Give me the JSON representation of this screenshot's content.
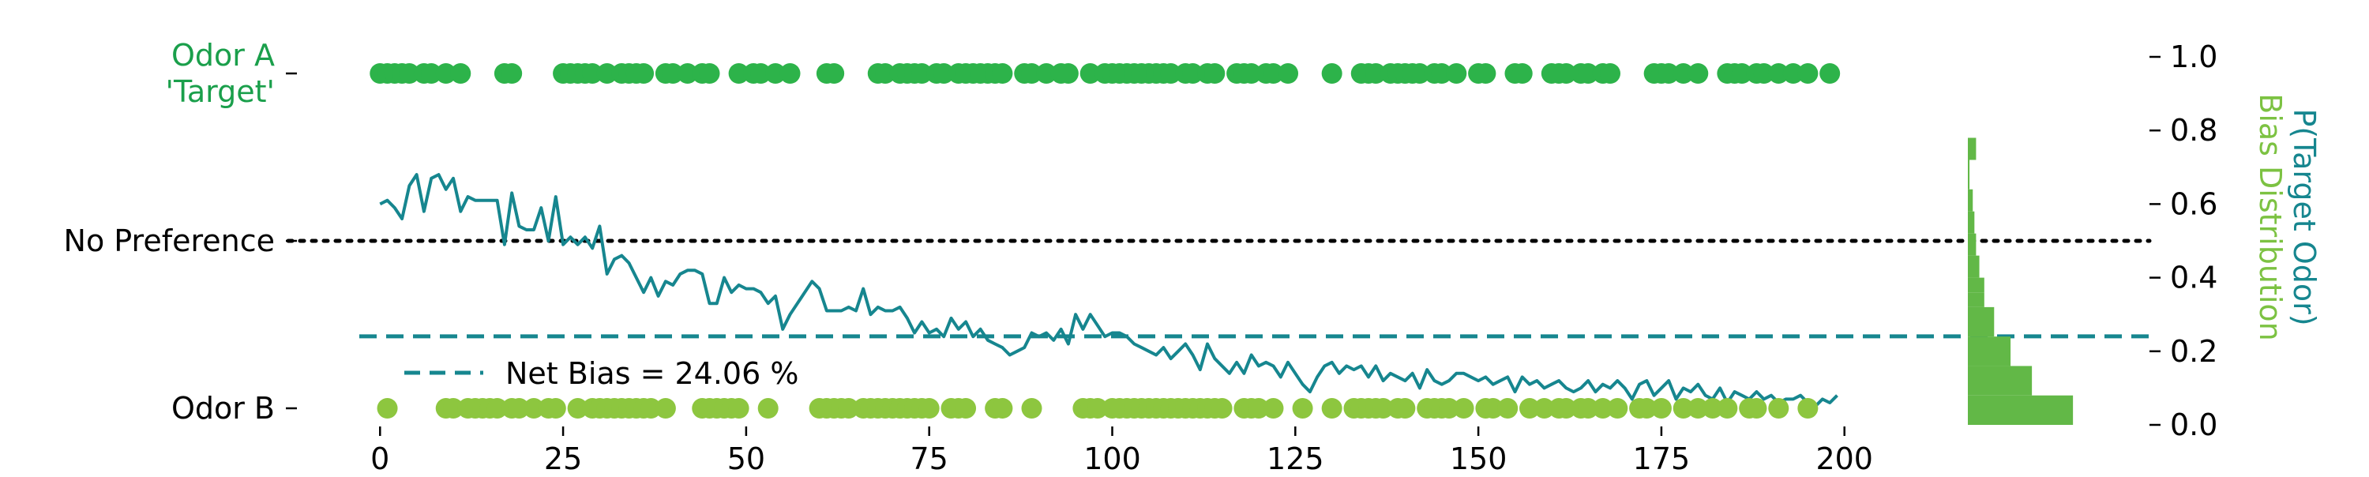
{
  "chart_data": {
    "type": "scatter",
    "xlim": [
      -1,
      201
    ],
    "ylim": [
      0.0,
      1.0
    ],
    "x_ticks": [
      0,
      25,
      50,
      75,
      100,
      125,
      150,
      175,
      200
    ],
    "y_ticks": [
      "0.0",
      "0.2",
      "0.4",
      "0.6",
      "0.8",
      "1.0"
    ],
    "y_tick_values": [
      0.0,
      0.2,
      0.4,
      0.6,
      0.8,
      1.0
    ],
    "left_labels": [
      {
        "value": 0.95,
        "lines": [
          "Odor A",
          "'Target'"
        ],
        "color": "#1a9f4b"
      },
      {
        "value": 0.5,
        "lines": [
          "No Preference"
        ],
        "color": "#000000"
      },
      {
        "value": 0.04,
        "lines": [
          "Odor B"
        ],
        "color": "#000000"
      }
    ],
    "right_axis_labels": [
      {
        "text": "P(Target Odor)",
        "color": "#16868f"
      },
      {
        "text": "Bias Distribution",
        "color": "#7cc242"
      }
    ],
    "legend": {
      "text": "Net Bias = 24.06 %",
      "placement": "lower-left"
    },
    "net_bias": 0.2406,
    "no_preference": 0.5,
    "colors": {
      "target": "#2db34a",
      "odor_b": "#8dc63f",
      "prob_line": "#16868f",
      "net_bias_line": "#16868f",
      "hist": "#62b847"
    },
    "choices_target_x": [
      0,
      1,
      2,
      3,
      4,
      6,
      7,
      9,
      11,
      17,
      18,
      25,
      26,
      27,
      28,
      29,
      31,
      33,
      34,
      35,
      36,
      39,
      40,
      42,
      44,
      45,
      49,
      51,
      52,
      54,
      56,
      61,
      62,
      68,
      69,
      71,
      72,
      73,
      74,
      76,
      77,
      79,
      80,
      81,
      82,
      83,
      84,
      85,
      88,
      89,
      91,
      93,
      94,
      97,
      99,
      100,
      101,
      102,
      103,
      104,
      105,
      106,
      107,
      108,
      110,
      111,
      113,
      114,
      117,
      118,
      119,
      121,
      122,
      124,
      130,
      134,
      135,
      136,
      138,
      139,
      140,
      141,
      142,
      144,
      145,
      147,
      150,
      151,
      155,
      156,
      160,
      161,
      162,
      164,
      165,
      167,
      168,
      174,
      175,
      176,
      178,
      180,
      184,
      185,
      186,
      188,
      189,
      191,
      193,
      195,
      198
    ],
    "choices_odor_b_x": [
      1,
      9,
      10,
      12,
      13,
      14,
      15,
      16,
      18,
      19,
      21,
      23,
      24,
      27,
      29,
      30,
      31,
      32,
      33,
      34,
      35,
      36,
      37,
      39,
      44,
      45,
      46,
      47,
      48,
      49,
      53,
      60,
      61,
      62,
      63,
      64,
      66,
      67,
      68,
      69,
      70,
      71,
      72,
      73,
      74,
      75,
      78,
      79,
      80,
      84,
      85,
      89,
      96,
      97,
      98,
      100,
      101,
      102,
      103,
      104,
      105,
      106,
      107,
      108,
      109,
      110,
      111,
      112,
      113,
      114,
      115,
      118,
      119,
      120,
      122,
      126,
      130,
      133,
      134,
      135,
      136,
      137,
      139,
      140,
      143,
      144,
      145,
      146,
      148,
      151,
      152,
      154,
      157,
      159,
      161,
      162,
      164,
      165,
      167,
      169,
      172,
      173,
      175,
      178,
      180,
      182,
      184,
      187,
      188,
      191,
      195
    ],
    "prob_x": [
      0,
      1,
      2,
      3,
      4,
      5,
      6,
      7,
      8,
      9,
      10,
      11,
      12,
      13,
      14,
      15,
      16,
      17,
      18,
      19,
      20,
      21,
      22,
      23,
      24,
      25,
      26,
      27,
      28,
      29,
      30,
      31,
      32,
      33,
      34,
      35,
      36,
      37,
      38,
      39,
      40,
      41,
      42,
      43,
      44,
      45,
      46,
      47,
      48,
      49,
      50,
      51,
      52,
      53,
      54,
      55,
      56,
      57,
      58,
      59,
      60,
      61,
      62,
      63,
      64,
      65,
      66,
      67,
      68,
      69,
      70,
      71,
      72,
      73,
      74,
      75,
      76,
      77,
      78,
      79,
      80,
      81,
      82,
      83,
      84,
      85,
      86,
      87,
      88,
      89,
      90,
      91,
      92,
      93,
      94,
      95,
      96,
      97,
      98,
      99,
      100,
      101,
      102,
      103,
      104,
      105,
      106,
      107,
      108,
      109,
      110,
      111,
      112,
      113,
      114,
      115,
      116,
      117,
      118,
      119,
      120,
      121,
      122,
      123,
      124,
      125,
      126,
      127,
      128,
      129,
      130,
      131,
      132,
      133,
      134,
      135,
      136,
      137,
      138,
      139,
      140,
      141,
      142,
      143,
      144,
      145,
      146,
      147,
      148,
      149,
      150,
      151,
      152,
      153,
      154,
      155,
      156,
      157,
      158,
      159,
      160,
      161,
      162,
      163,
      164,
      165,
      166,
      167,
      168,
      169,
      170,
      171,
      172,
      173,
      174,
      175,
      176,
      177,
      178,
      179,
      180,
      181,
      182,
      183,
      184,
      185,
      186,
      187,
      188,
      189,
      190,
      191,
      192,
      193,
      194,
      195,
      196,
      197,
      198,
      199
    ],
    "prob_y": [
      0.6,
      0.61,
      0.59,
      0.56,
      0.65,
      0.68,
      0.58,
      0.67,
      0.68,
      0.64,
      0.67,
      0.58,
      0.62,
      0.61,
      0.61,
      0.61,
      0.61,
      0.49,
      0.63,
      0.54,
      0.53,
      0.53,
      0.59,
      0.5,
      0.62,
      0.49,
      0.51,
      0.49,
      0.51,
      0.48,
      0.54,
      0.41,
      0.45,
      0.46,
      0.44,
      0.4,
      0.36,
      0.4,
      0.35,
      0.39,
      0.38,
      0.41,
      0.42,
      0.42,
      0.41,
      0.33,
      0.33,
      0.4,
      0.36,
      0.38,
      0.37,
      0.37,
      0.36,
      0.33,
      0.35,
      0.26,
      0.3,
      0.33,
      0.36,
      0.39,
      0.37,
      0.31,
      0.31,
      0.31,
      0.32,
      0.31,
      0.37,
      0.3,
      0.32,
      0.31,
      0.31,
      0.32,
      0.29,
      0.25,
      0.28,
      0.25,
      0.26,
      0.24,
      0.29,
      0.26,
      0.28,
      0.24,
      0.26,
      0.23,
      0.22,
      0.21,
      0.19,
      0.2,
      0.21,
      0.25,
      0.24,
      0.25,
      0.23,
      0.26,
      0.22,
      0.3,
      0.26,
      0.3,
      0.27,
      0.24,
      0.25,
      0.25,
      0.24,
      0.22,
      0.21,
      0.2,
      0.19,
      0.21,
      0.18,
      0.2,
      0.22,
      0.19,
      0.15,
      0.22,
      0.18,
      0.16,
      0.14,
      0.17,
      0.14,
      0.19,
      0.16,
      0.17,
      0.16,
      0.13,
      0.17,
      0.14,
      0.11,
      0.09,
      0.13,
      0.16,
      0.17,
      0.14,
      0.16,
      0.15,
      0.16,
      0.13,
      0.16,
      0.12,
      0.14,
      0.13,
      0.12,
      0.14,
      0.1,
      0.15,
      0.12,
      0.11,
      0.12,
      0.14,
      0.14,
      0.13,
      0.12,
      0.13,
      0.11,
      0.12,
      0.13,
      0.09,
      0.13,
      0.11,
      0.12,
      0.1,
      0.11,
      0.12,
      0.1,
      0.09,
      0.1,
      0.12,
      0.09,
      0.11,
      0.1,
      0.12,
      0.1,
      0.07,
      0.11,
      0.12,
      0.08,
      0.1,
      0.12,
      0.07,
      0.1,
      0.09,
      0.11,
      0.08,
      0.07,
      0.1,
      0.06,
      0.09,
      0.08,
      0.07,
      0.09,
      0.07,
      0.08,
      0.06,
      0.07,
      0.07,
      0.08,
      0.06,
      0.05,
      0.07,
      0.06,
      0.08,
      0.06,
      0.06,
      0.07,
      0.07
    ],
    "histogram": {
      "bins": [
        [
          0.0,
          0.08
        ],
        [
          0.08,
          0.16
        ],
        [
          0.16,
          0.24
        ],
        [
          0.24,
          0.32
        ],
        [
          0.32,
          0.36
        ],
        [
          0.36,
          0.4
        ],
        [
          0.4,
          0.46
        ],
        [
          0.46,
          0.52
        ],
        [
          0.52,
          0.58
        ],
        [
          0.58,
          0.64
        ],
        [
          0.64,
          0.72
        ],
        [
          0.72,
          0.78
        ]
      ],
      "widths": [
        0.64,
        0.39,
        0.26,
        0.16,
        0.1,
        0.1,
        0.07,
        0.05,
        0.04,
        0.03,
        0.01,
        0.05
      ]
    }
  }
}
